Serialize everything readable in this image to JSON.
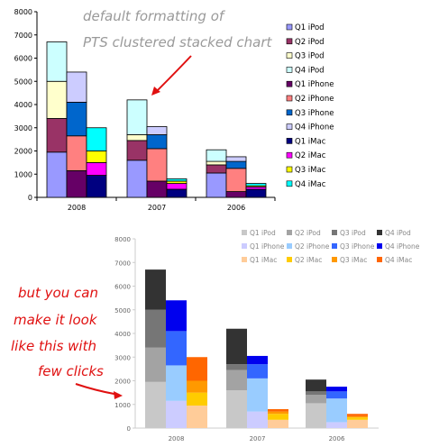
{
  "annotations": {
    "top_note_line1": "default formatting of",
    "top_note_line2": "PTS clustered stacked chart",
    "bottom_note_line1": "but you can",
    "bottom_note_line2": "make it look",
    "bottom_note_line3": "like this with",
    "bottom_note_line4": "few clicks",
    "note_color_top": "#9a9a9a",
    "note_color_bottom": "#e01010"
  },
  "chart_data": [
    {
      "type": "bar",
      "stacked": true,
      "clustered": true,
      "title": "",
      "groups": [
        "2008",
        "2007",
        "2006"
      ],
      "products": [
        "iPod",
        "iPhone",
        "iMac"
      ],
      "quarters": [
        "Q1",
        "Q2",
        "Q3",
        "Q4"
      ],
      "values": {
        "2008": {
          "iPod": [
            1950,
            1450,
            1600,
            1700
          ],
          "iPhone": [
            1150,
            1500,
            1450,
            1300
          ],
          "iMac": [
            950,
            550,
            500,
            1000
          ]
        },
        "2007": {
          "iPod": [
            1600,
            850,
            250,
            1500
          ],
          "iPhone": [
            700,
            1400,
            600,
            350
          ],
          "iMac": [
            350,
            250,
            100,
            100
          ]
        },
        "2006": {
          "iPod": [
            1050,
            350,
            150,
            500
          ],
          "iPhone": [
            250,
            1000,
            300,
            200
          ],
          "iMac": [
            350,
            100,
            50,
            100
          ]
        }
      },
      "series": [
        {
          "name": "Q1 iPod"
        },
        {
          "name": "Q2 iPod"
        },
        {
          "name": "Q3 iPod"
        },
        {
          "name": "Q4 iPod"
        },
        {
          "name": "Q1 iPhone"
        },
        {
          "name": "Q2 iPhone"
        },
        {
          "name": "Q3 iPhone"
        },
        {
          "name": "Q4 iPhone"
        },
        {
          "name": "Q1 iMac"
        },
        {
          "name": "Q2 iMac"
        },
        {
          "name": "Q3 iMac"
        },
        {
          "name": "Q4 iMac"
        }
      ],
      "colors": [
        "#9999ff",
        "#993366",
        "#ffffcc",
        "#ccffff",
        "#660066",
        "#ff8080",
        "#0066cc",
        "#ccccff",
        "#000080",
        "#ff00ff",
        "#ffff00",
        "#00ffff"
      ],
      "ylim": [
        0,
        8000
      ],
      "yticks": [
        0,
        1000,
        2000,
        3000,
        4000,
        5000,
        6000,
        7000,
        8000
      ],
      "legend": "right",
      "grid": false
    },
    {
      "type": "bar",
      "stacked": true,
      "clustered": true,
      "title": "",
      "groups": [
        "2008",
        "2007",
        "2006"
      ],
      "products": [
        "iPod",
        "iPhone",
        "iMac"
      ],
      "quarters": [
        "Q1",
        "Q2",
        "Q3",
        "Q4"
      ],
      "values": {
        "2008": {
          "iPod": [
            1950,
            1450,
            1600,
            1700
          ],
          "iPhone": [
            1150,
            1500,
            1450,
            1300
          ],
          "iMac": [
            950,
            550,
            500,
            1000
          ]
        },
        "2007": {
          "iPod": [
            1600,
            850,
            250,
            1500
          ],
          "iPhone": [
            700,
            1400,
            600,
            350
          ],
          "iMac": [
            350,
            250,
            100,
            100
          ]
        },
        "2006": {
          "iPod": [
            1050,
            350,
            150,
            500
          ],
          "iPhone": [
            250,
            1000,
            300,
            200
          ],
          "iMac": [
            350,
            100,
            50,
            100
          ]
        }
      },
      "series": [
        {
          "name": "Q1 iPod"
        },
        {
          "name": "Q2 iPod"
        },
        {
          "name": "Q3 iPod"
        },
        {
          "name": "Q4 iPod"
        },
        {
          "name": "Q1 iPhone"
        },
        {
          "name": "Q2 iPhone"
        },
        {
          "name": "Q3 iPhone"
        },
        {
          "name": "Q4 iPhone"
        },
        {
          "name": "Q1 iMac"
        },
        {
          "name": "Q2 iMac"
        },
        {
          "name": "Q3 iMac"
        },
        {
          "name": "Q4 iMac"
        }
      ],
      "colors": [
        "#c8c8c8",
        "#a3a3a3",
        "#767676",
        "#333333",
        "#ccccff",
        "#99ccff",
        "#3366ff",
        "#0000ee",
        "#ffcc99",
        "#ffcc00",
        "#ff9900",
        "#ff6600"
      ],
      "ylim": [
        0,
        8000
      ],
      "yticks": [
        0,
        1000,
        2000,
        3000,
        4000,
        5000,
        6000,
        7000,
        8000
      ],
      "legend": "top-right",
      "grid": false
    }
  ]
}
